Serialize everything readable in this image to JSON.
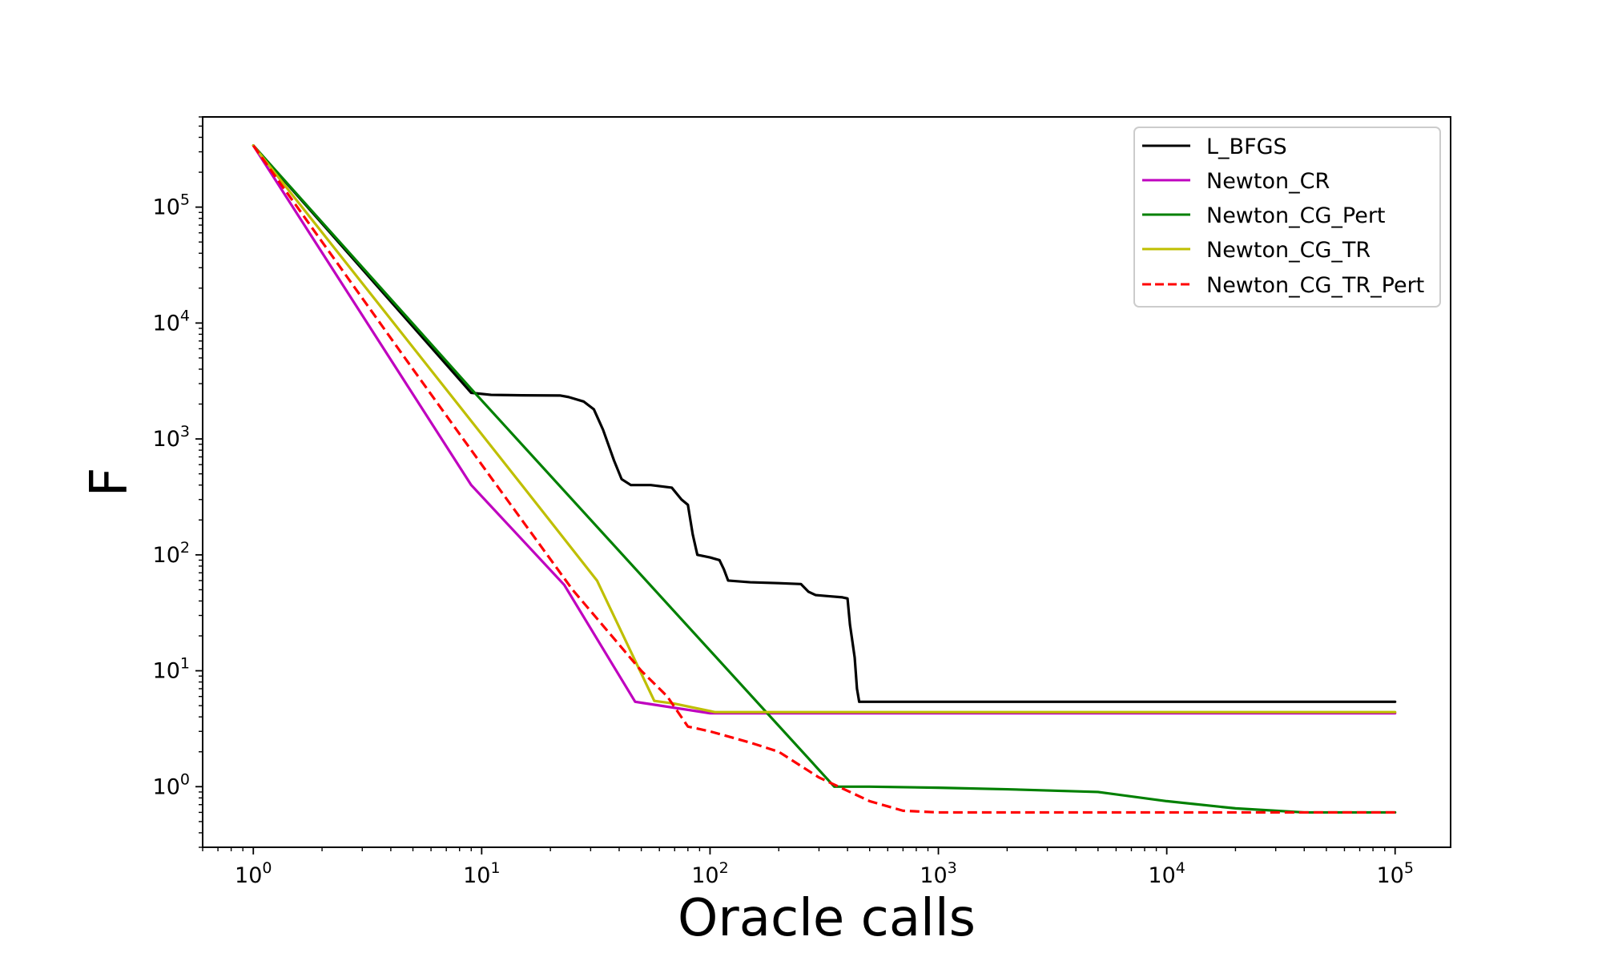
{
  "chart_data": {
    "type": "line",
    "xlabel": "Oracle calls",
    "ylabel": "F",
    "xscale": "log",
    "yscale": "log",
    "xlim": [
      0.6,
      175000
    ],
    "ylim": [
      0.3,
      600000
    ],
    "x_ticks": [
      {
        "value": 1,
        "base": "10",
        "exp": "0"
      },
      {
        "value": 10,
        "base": "10",
        "exp": "1"
      },
      {
        "value": 100,
        "base": "10",
        "exp": "2"
      },
      {
        "value": 1000,
        "base": "10",
        "exp": "3"
      },
      {
        "value": 10000,
        "base": "10",
        "exp": "4"
      },
      {
        "value": 100000,
        "base": "10",
        "exp": "5"
      }
    ],
    "y_ticks": [
      {
        "value": 1,
        "base": "10",
        "exp": "0"
      },
      {
        "value": 10,
        "base": "10",
        "exp": "1"
      },
      {
        "value": 100,
        "base": "10",
        "exp": "2"
      },
      {
        "value": 1000,
        "base": "10",
        "exp": "3"
      },
      {
        "value": 10000,
        "base": "10",
        "exp": "4"
      },
      {
        "value": 100000,
        "base": "10",
        "exp": "5"
      }
    ],
    "legend_position": "top-right",
    "series": [
      {
        "name": "L_BFGS",
        "color": "#000000",
        "dash": "solid",
        "points": [
          [
            1,
            340000
          ],
          [
            9,
            2500
          ],
          [
            11,
            2400
          ],
          [
            15,
            2380
          ],
          [
            22,
            2370
          ],
          [
            24,
            2300
          ],
          [
            28,
            2100
          ],
          [
            31,
            1800
          ],
          [
            34,
            1200
          ],
          [
            38,
            650
          ],
          [
            41,
            450
          ],
          [
            45,
            400
          ],
          [
            55,
            400
          ],
          [
            68,
            380
          ],
          [
            75,
            300
          ],
          [
            80,
            270
          ],
          [
            84,
            150
          ],
          [
            88,
            100
          ],
          [
            100,
            95
          ],
          [
            110,
            90
          ],
          [
            115,
            75
          ],
          [
            120,
            60
          ],
          [
            150,
            58
          ],
          [
            200,
            57
          ],
          [
            250,
            56
          ],
          [
            270,
            48
          ],
          [
            290,
            45
          ],
          [
            330,
            44
          ],
          [
            380,
            43
          ],
          [
            400,
            42
          ],
          [
            410,
            25
          ],
          [
            420,
            18
          ],
          [
            430,
            13
          ],
          [
            440,
            7
          ],
          [
            450,
            5.4
          ],
          [
            100000,
            5.4
          ]
        ]
      },
      {
        "name": "Newton_CR",
        "color": "#bf00bf",
        "dash": "solid",
        "points": [
          [
            1,
            340000
          ],
          [
            9,
            400
          ],
          [
            23,
            55
          ],
          [
            47,
            5.4
          ],
          [
            50,
            5.3
          ],
          [
            100,
            4.3
          ],
          [
            100000,
            4.3
          ]
        ]
      },
      {
        "name": "Newton_CG_Pert",
        "color": "#008000",
        "dash": "solid",
        "points": [
          [
            1,
            340000
          ],
          [
            9,
            2700
          ],
          [
            350,
            1
          ],
          [
            500,
            1
          ],
          [
            1000,
            0.98
          ],
          [
            2000,
            0.95
          ],
          [
            5000,
            0.9
          ],
          [
            10000,
            0.75
          ],
          [
            20000,
            0.65
          ],
          [
            40000,
            0.6
          ],
          [
            100000,
            0.6
          ]
        ]
      },
      {
        "name": "Newton_CG_TR",
        "color": "#bfbf00",
        "dash": "solid",
        "points": [
          [
            1,
            340000
          ],
          [
            15,
            400
          ],
          [
            32,
            60
          ],
          [
            57,
            5.5
          ],
          [
            70,
            5.2
          ],
          [
            105,
            4.4
          ],
          [
            100000,
            4.4
          ]
        ]
      },
      {
        "name": "Newton_CG_TR_Pert",
        "color": "#ff0000",
        "dash": "dashed",
        "points": [
          [
            1,
            340000
          ],
          [
            5,
            4000
          ],
          [
            10,
            600
          ],
          [
            25,
            50
          ],
          [
            50,
            10
          ],
          [
            65,
            6
          ],
          [
            80,
            3.3
          ],
          [
            100,
            3
          ],
          [
            150,
            2.4
          ],
          [
            200,
            2
          ],
          [
            300,
            1.2
          ],
          [
            500,
            0.75
          ],
          [
            700,
            0.62
          ],
          [
            1000,
            0.6
          ],
          [
            100000,
            0.6
          ]
        ]
      }
    ]
  }
}
